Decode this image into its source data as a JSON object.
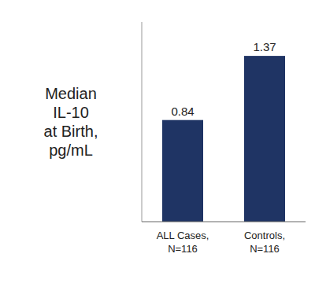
{
  "chart_data": {
    "type": "bar",
    "title": "Median\nIL-10\nat Birth,\npg/mL",
    "categories": [
      "ALL Cases,\nN=116",
      "Controls,\nN=116"
    ],
    "values": [
      0.84,
      1.37
    ],
    "color": "#1F3464",
    "ylim": [
      0,
      1.65
    ],
    "data_labels": true,
    "tick_labels": "x",
    "grid": false
  }
}
